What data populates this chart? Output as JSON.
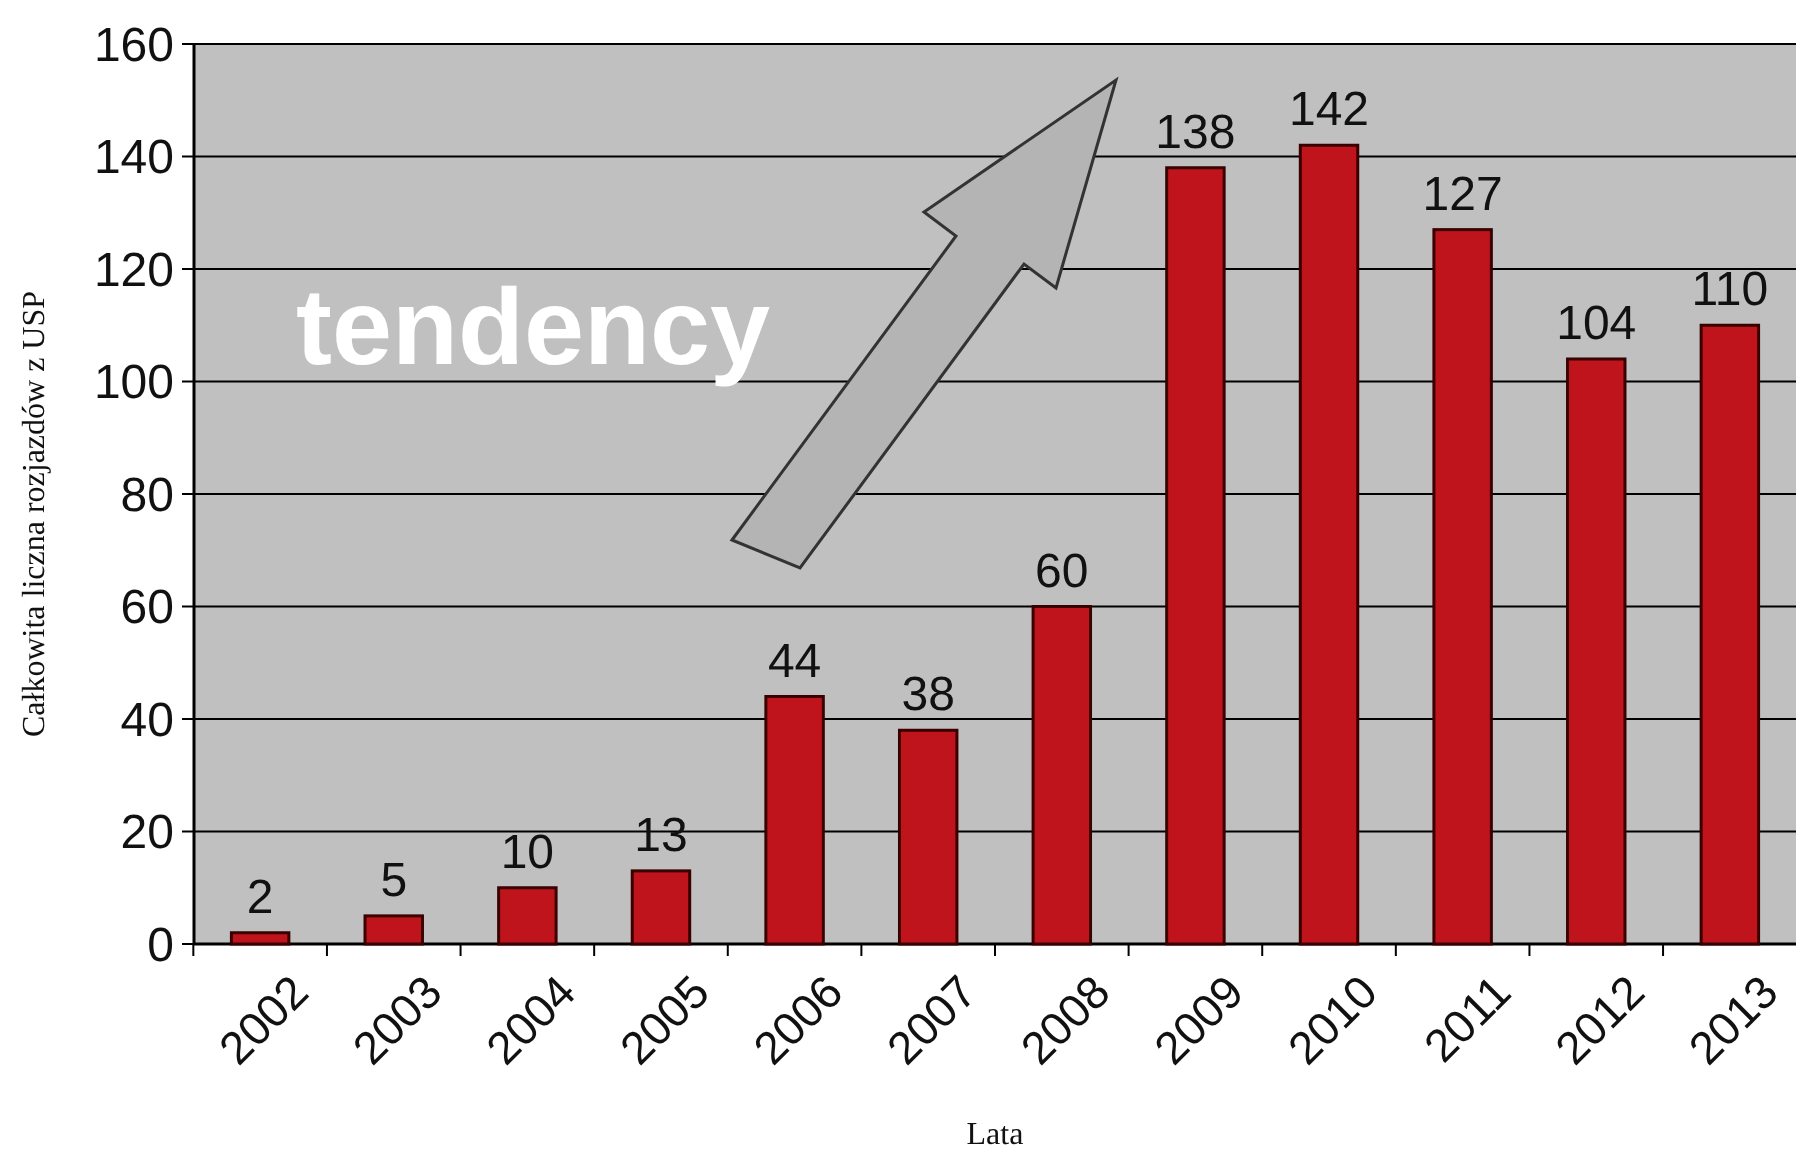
{
  "chart_data": {
    "type": "bar",
    "xlabel": "Lata",
    "ylabel": "Całkowita liczna rozjazdów z USP",
    "categories": [
      "2002",
      "2003",
      "2004",
      "2005",
      "2006",
      "2007",
      "2008",
      "2009",
      "2010",
      "2011",
      "2012",
      "2013"
    ],
    "values": [
      2,
      5,
      10,
      13,
      44,
      38,
      60,
      138,
      142,
      127,
      104,
      110
    ],
    "color": "#c0141c",
    "ylim": [
      0,
      160
    ],
    "yticks": [
      0,
      20,
      40,
      60,
      80,
      100,
      120,
      140,
      160
    ],
    "grid": "y",
    "data_labels": true,
    "annotations": [
      "tendency"
    ]
  }
}
